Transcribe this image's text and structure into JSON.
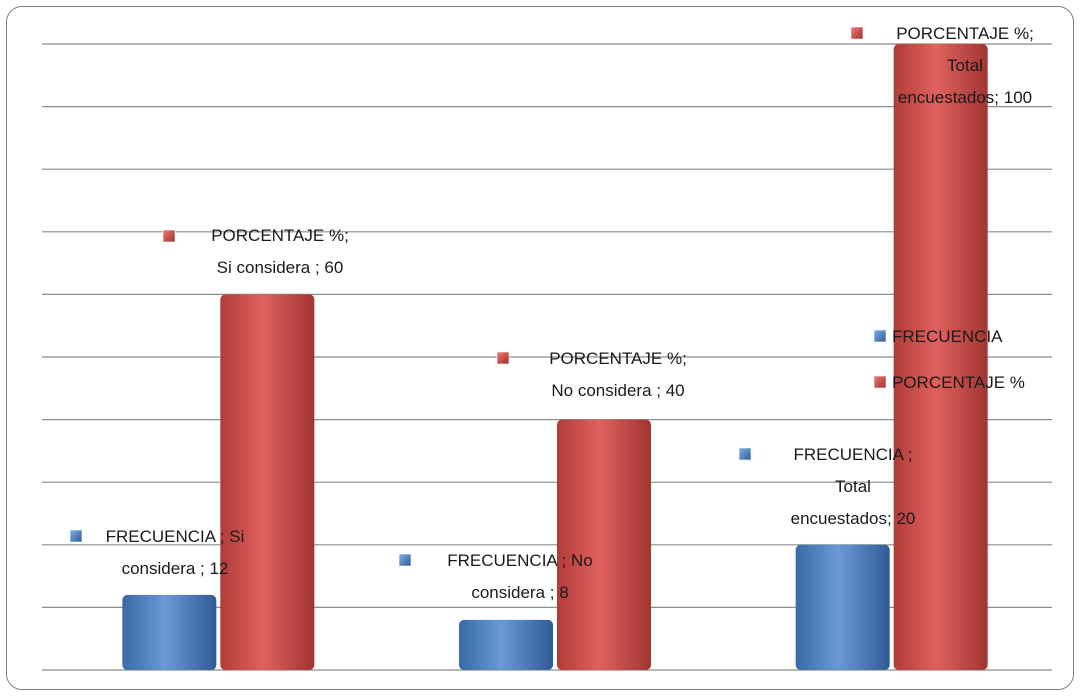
{
  "chart_data": {
    "type": "bar",
    "categories": [
      "Si considera",
      "No considera",
      "Total encuestados"
    ],
    "series": [
      {
        "name": "FRECUENCIA",
        "values": [
          12,
          8,
          20
        ],
        "color": "#4f81bd",
        "labels": [
          [
            "FRECUENCIA ; Si",
            "considera ; 12"
          ],
          [
            "FRECUENCIA ; No",
            "considera ; 8"
          ],
          [
            "FRECUENCIA ;",
            "Total",
            "encuestados; 20"
          ]
        ]
      },
      {
        "name": "PORCENTAJE  %",
        "values": [
          60,
          40,
          100
        ],
        "color": "#c0504d",
        "labels": [
          [
            "PORCENTAJE  %;",
            "Si considera ; 60"
          ],
          [
            "PORCENTAJE  %;",
            "No considera ; 40"
          ],
          [
            "PORCENTAJE  %;",
            "Total",
            "encuestados; 100"
          ]
        ]
      }
    ],
    "ylim": [
      0,
      100
    ],
    "grid": true,
    "legend_position": "right"
  }
}
